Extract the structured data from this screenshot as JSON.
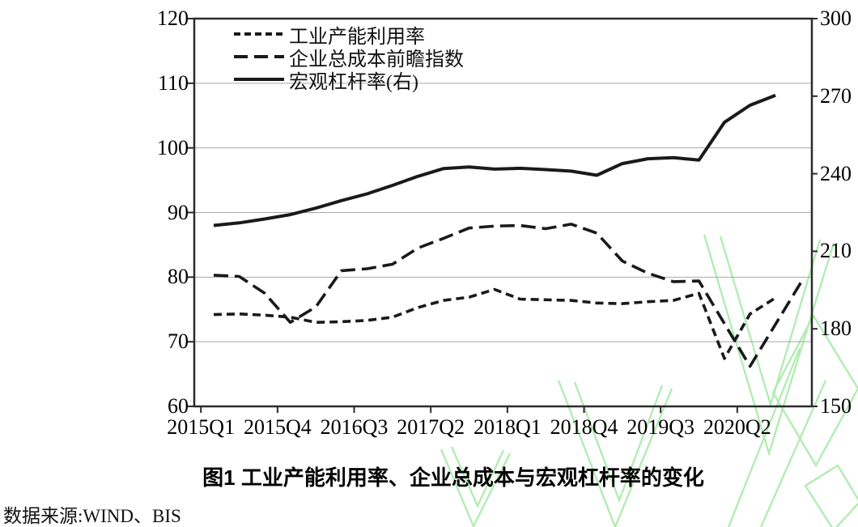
{
  "chart_data": {
    "type": "line",
    "title": "图1 工业产能利用率、企业总成本与宏观杠杆率的变化",
    "source_label": "数据来源:WIND、BIS",
    "xlabel": "",
    "ylabel": "",
    "grid": true,
    "legend_position": "top-left",
    "x_axis": {
      "tick_labels": [
        "2015Q1",
        "2015Q4",
        "2016Q3",
        "2017Q2",
        "2018Q1",
        "2018Q4",
        "2019Q3",
        "2020Q2"
      ],
      "categories": [
        "2015Q1",
        "2015Q2",
        "2015Q3",
        "2015Q4",
        "2016Q1",
        "2016Q2",
        "2016Q3",
        "2016Q4",
        "2017Q1",
        "2017Q2",
        "2017Q3",
        "2017Q4",
        "2018Q1",
        "2018Q2",
        "2018Q3",
        "2018Q4",
        "2019Q1",
        "2019Q2",
        "2019Q3",
        "2019Q4",
        "2020Q1",
        "2020Q2",
        "2020Q3",
        "2020Q4"
      ]
    },
    "left_axis": {
      "min": 60,
      "max": 120,
      "ticks": [
        120,
        110,
        100,
        90,
        80,
        70,
        60
      ]
    },
    "right_axis": {
      "min": 150,
      "max": 300,
      "ticks": [
        300,
        270,
        240,
        210,
        180,
        150
      ]
    },
    "series": [
      {
        "name": "工业产能利用率",
        "axis": "left",
        "line_style": "short-dash",
        "color": "#1a1a1a",
        "values": [
          74.2,
          74.3,
          74.1,
          73.8,
          73.0,
          73.1,
          73.3,
          73.8,
          75.3,
          76.4,
          76.9,
          78.1,
          76.6,
          76.5,
          76.4,
          76.0,
          75.9,
          76.2,
          76.4,
          77.5,
          67.4,
          74.3,
          76.8
        ]
      },
      {
        "name": "企业总成本前瞻指数",
        "axis": "left",
        "line_style": "long-dash",
        "color": "#1a1a1a",
        "values": [
          80.3,
          80.1,
          77.5,
          73.0,
          75.4,
          81.0,
          81.3,
          82.0,
          84.5,
          86.0,
          87.6,
          87.9,
          88.0,
          87.5,
          88.2,
          86.8,
          82.5,
          80.6,
          79.3,
          79.4,
          72.8,
          66.2,
          72.7,
          79.2
        ]
      },
      {
        "name": "宏观杠杆率(右)",
        "axis": "right",
        "line_style": "solid",
        "color": "#1a1a1a",
        "values": [
          220.0,
          221.0,
          222.5,
          224.2,
          226.7,
          229.6,
          232.2,
          235.5,
          239.0,
          242.0,
          242.6,
          241.8,
          242.1,
          241.6,
          241.0,
          239.4,
          243.9,
          245.8,
          246.2,
          245.3,
          259.9,
          266.5,
          270.3
        ]
      }
    ],
    "watermark_color": "#8ee58e"
  }
}
